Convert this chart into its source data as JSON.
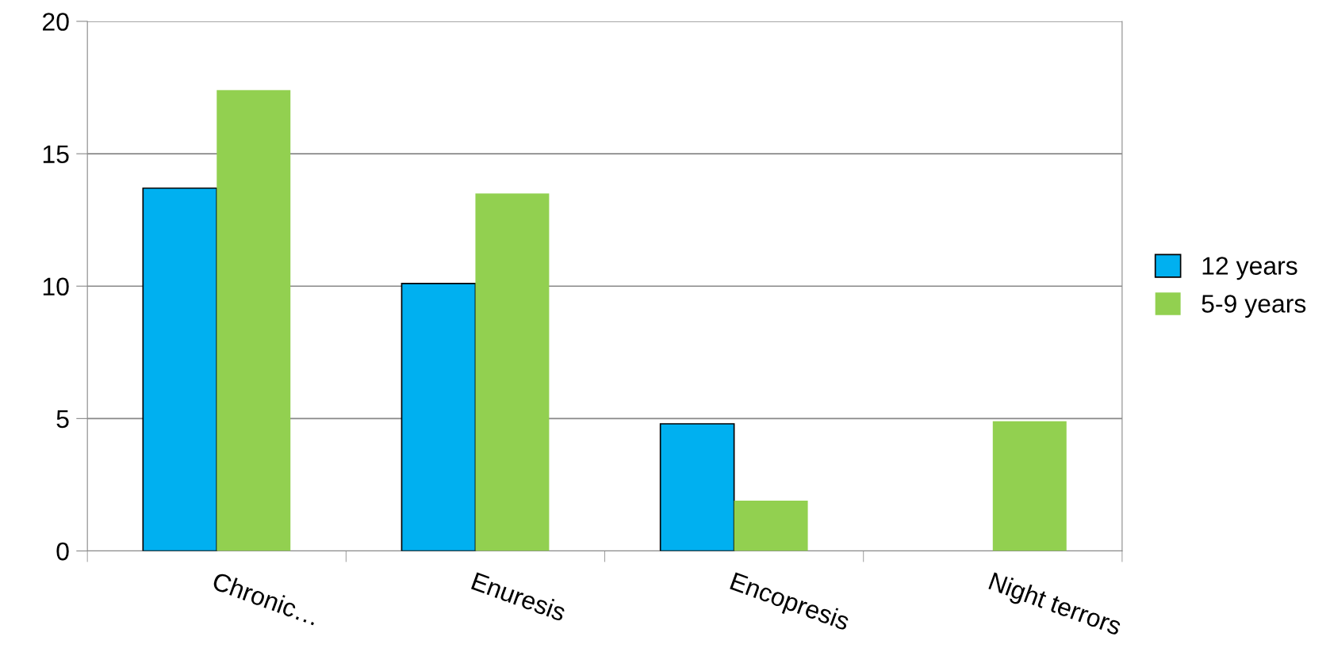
{
  "chart_data": {
    "type": "bar",
    "categories": [
      "Chronic…",
      "Enuresis",
      "Encopresis",
      "Night terrors"
    ],
    "series": [
      {
        "name": "12 years",
        "color": "#00b0f0",
        "values": [
          13.7,
          10.1,
          4.8,
          null
        ]
      },
      {
        "name": "5-9 years",
        "color": "#92d050",
        "values": [
          17.4,
          13.5,
          1.9,
          4.9
        ]
      }
    ],
    "ylim": [
      0,
      20
    ],
    "yticks": [
      0,
      5,
      10,
      15,
      20
    ],
    "grid": "y",
    "legend": "right"
  }
}
